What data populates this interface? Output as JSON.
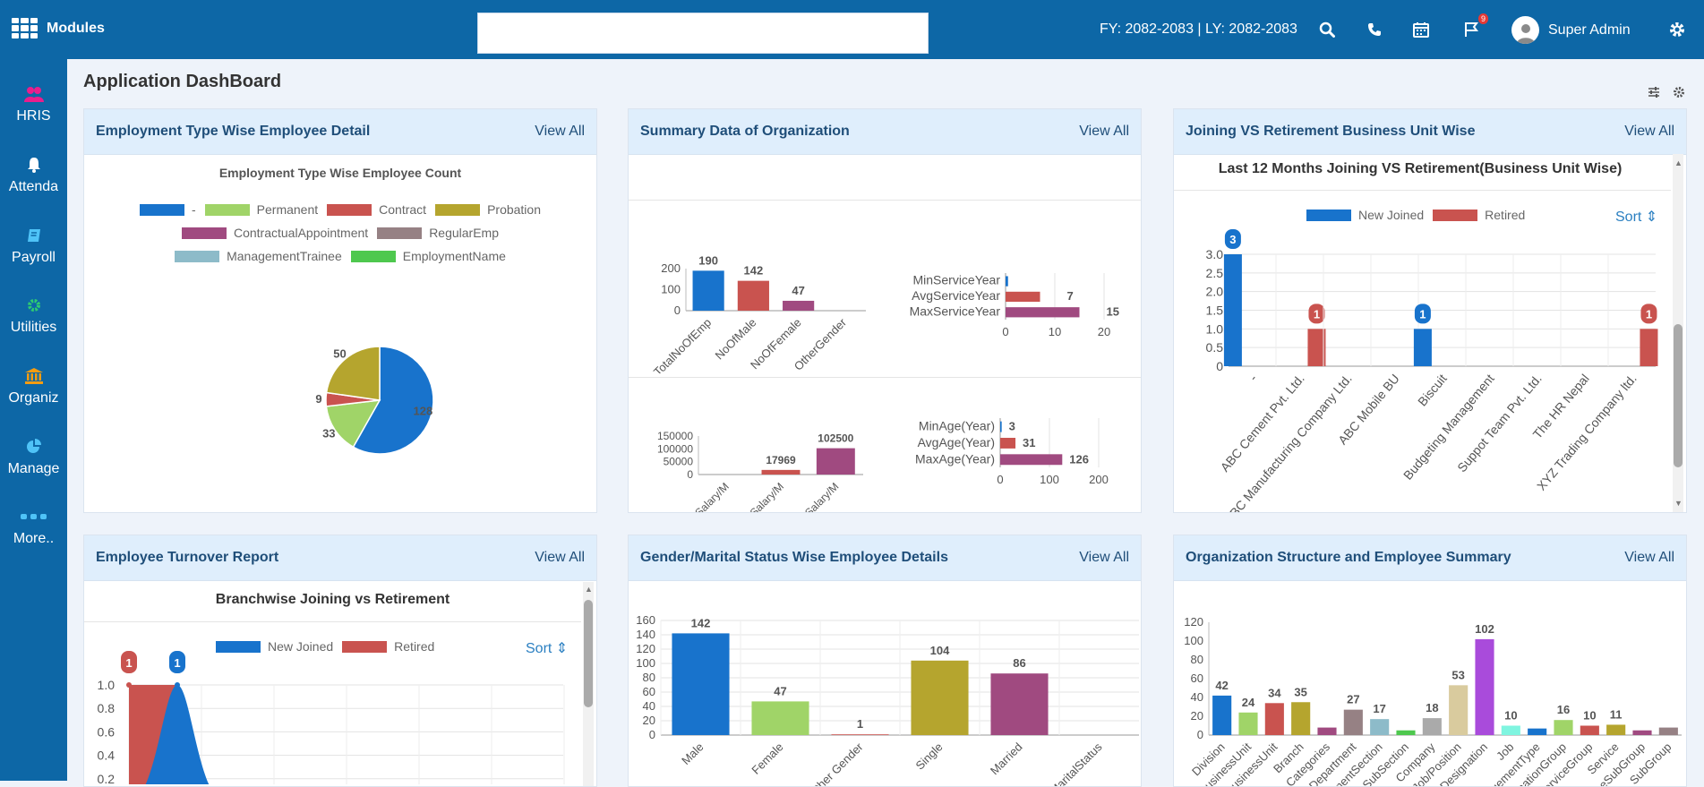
{
  "topbar": {
    "modules_label": "Modules",
    "search_value": "",
    "fiscal_year": "FY: 2082-2083 | LY: 2082-2083",
    "flag_badge": "9",
    "user_name": "Super Admin",
    "icons": [
      "grid-icon",
      "search-icon",
      "phone-icon",
      "calendar-icon",
      "flag-icon",
      "user-avatar-icon",
      "settings-gear-icon"
    ]
  },
  "sidebar": {
    "items": [
      {
        "label": "HRIS",
        "icon": "users-icon",
        "color": "#e91e8c"
      },
      {
        "label": "Attenda",
        "icon": "bell-icon",
        "color": "#ffffff"
      },
      {
        "label": "Payroll",
        "icon": "book-icon",
        "color": "#4fc3f7"
      },
      {
        "label": "Utilities",
        "icon": "gear-icon",
        "color": "#2ecc71"
      },
      {
        "label": "Organiz",
        "icon": "bank-icon",
        "color": "#f39c12"
      },
      {
        "label": "Manage",
        "icon": "pie-icon",
        "color": "#4fc3f7"
      },
      {
        "label": "More..",
        "icon": "dots-icon",
        "color": "#4fc3f7"
      }
    ]
  },
  "page": {
    "title": "Application DashBoard",
    "view_all": "View All"
  },
  "panels": {
    "employment": {
      "title": "Employment Type Wise Employee Detail"
    },
    "summary": {
      "title": "Summary Data of Organization"
    },
    "joining": {
      "title": "Joining VS Retirement Business Unit Wise"
    },
    "turnover": {
      "title": "Employee Turnover Report"
    },
    "gender": {
      "title": "Gender/Marital Status Wise Employee Details"
    },
    "orgstruct": {
      "title": "Organization Structure and Employee Summary"
    }
  },
  "colors": {
    "blue": "#1873cc",
    "red": "#c9534f",
    "olive": "#b5a52e",
    "purple": "#a04a80",
    "green": "#a0d468",
    "mauve": "#968184",
    "teal": "#8dbbc9",
    "brightgreen": "#4ec84e",
    "tan": "#d9cb9e",
    "violet": "#a94bdb",
    "cyan": "#7ff5e0"
  },
  "chart_data": [
    {
      "id": "employment-pie",
      "type": "pie",
      "title": "Employment Type Wise Employee Count",
      "legend": [
        {
          "name": "-",
          "color": "#1873cc"
        },
        {
          "name": "Permanent",
          "color": "#a0d468"
        },
        {
          "name": "Contract",
          "color": "#c9534f"
        },
        {
          "name": "Probation",
          "color": "#b5a52e"
        },
        {
          "name": "ContractualAppointment",
          "color": "#a04a80"
        },
        {
          "name": "RegularEmp",
          "color": "#968184"
        },
        {
          "name": "ManagementTrainee",
          "color": "#8dbbc9"
        },
        {
          "name": "EmploymentName",
          "color": "#4ec84e"
        }
      ],
      "slices": [
        {
          "name": "-",
          "value": 128,
          "color": "#1873cc"
        },
        {
          "name": "Permanent",
          "value": 33,
          "color": "#a0d468"
        },
        {
          "name": "Contract",
          "value": 9,
          "color": "#c9534f"
        },
        {
          "name": "Probation",
          "value": 50,
          "color": "#b5a52e"
        }
      ]
    },
    {
      "id": "summary-emp",
      "type": "bar",
      "categories": [
        "TotalNoOfEmp",
        "NoOfMale",
        "NoOfFemale",
        "OtherGender"
      ],
      "values": [
        190,
        142,
        47,
        0
      ],
      "colors": [
        "#1873cc",
        "#c9534f",
        "#a04a80",
        "#b5a52e"
      ],
      "yticks": [
        0,
        100,
        200
      ],
      "ylim": [
        0,
        200
      ]
    },
    {
      "id": "summary-service",
      "type": "bar",
      "orientation": "horizontal",
      "categories": [
        "MinServiceYear",
        "AvgServiceYear",
        "MaxServiceYear"
      ],
      "values": [
        0.5,
        7,
        15
      ],
      "value_labels": [
        "",
        "7",
        "15"
      ],
      "colors": [
        "#1873cc",
        "#c9534f",
        "#a04a80"
      ],
      "xticks": [
        0,
        10,
        20
      ],
      "xlim": [
        0,
        20
      ]
    },
    {
      "id": "summary-salary",
      "type": "bar",
      "categories": [
        "MinSalary/M",
        "AvgSalary/M",
        "MaxSalary/M"
      ],
      "values": [
        0,
        17969,
        102500
      ],
      "value_labels": [
        "",
        "17969",
        "102500"
      ],
      "colors": [
        "#1873cc",
        "#c9534f",
        "#a04a80"
      ],
      "yticks": [
        0,
        50000,
        100000,
        150000
      ],
      "ylim": [
        0,
        150000
      ]
    },
    {
      "id": "summary-age",
      "type": "bar",
      "orientation": "horizontal",
      "categories": [
        "MinAge(Year)",
        "AvgAge(Year)",
        "MaxAge(Year)"
      ],
      "values": [
        3,
        31,
        126
      ],
      "colors": [
        "#1873cc",
        "#c9534f",
        "#a04a80"
      ],
      "xticks": [
        0,
        100,
        200
      ],
      "xlim": [
        0,
        200
      ]
    },
    {
      "id": "joining-bu",
      "type": "bar",
      "title": "Last 12 Months Joining VS Retirement(Business Unit Wise)",
      "sort_label": "Sort",
      "categories": [
        "-",
        "ABC Cement Pvt. Ltd.",
        "ABC Manufacturing Company Ltd.",
        "ABC Mobile BU",
        "Biscuit",
        "Budgeting Management",
        "Suppot Team Pvt. Ltd.",
        "The HR Nepal",
        "XYZ Trading Company ltd."
      ],
      "series": [
        {
          "name": "New Joined",
          "color": "#1873cc",
          "values": [
            3,
            0,
            0,
            0,
            1,
            0,
            0,
            0,
            0
          ]
        },
        {
          "name": "Retired",
          "color": "#c9534f",
          "values": [
            0,
            1,
            0,
            0,
            0,
            0,
            0,
            0,
            1
          ]
        }
      ],
      "yticks": [
        "0",
        "0.5",
        "1.0",
        "1.5",
        "2.0",
        "2.5",
        "3.0"
      ],
      "ylim": [
        0,
        3
      ]
    },
    {
      "id": "turnover",
      "type": "area",
      "title": "Branchwise Joining vs Retirement",
      "sort_label": "Sort",
      "series": [
        {
          "name": "New Joined",
          "color": "#1873cc",
          "values": [
            0,
            1,
            0
          ]
        },
        {
          "name": "Retired",
          "color": "#c9534f",
          "values": [
            1,
            1,
            0
          ]
        }
      ],
      "yticks": [
        "0.2",
        "0.4",
        "0.6",
        "0.8",
        "1.0"
      ],
      "ylim": [
        0,
        1
      ]
    },
    {
      "id": "gender-marital",
      "type": "bar",
      "categories": [
        "Male",
        "Female",
        "Other Gender",
        "Single",
        "Married",
        "Other MaritalStatus"
      ],
      "values": [
        142,
        47,
        1,
        104,
        86,
        0
      ],
      "colors": [
        "#1873cc",
        "#a0d468",
        "#c9534f",
        "#b5a52e",
        "#a04a80",
        "#968184"
      ],
      "yticks": [
        0,
        20,
        40,
        60,
        80,
        100,
        120,
        140,
        160
      ],
      "ylim": [
        0,
        160
      ]
    },
    {
      "id": "org-structure",
      "type": "bar",
      "categories": [
        "Division",
        "BusinessUnit",
        "SubBusinessUnit",
        "Branch",
        "Categories",
        "Department",
        "DepartmentSection",
        "SubSection",
        "Company",
        "Job/Position",
        "Designation",
        "Job",
        "ManagementType",
        "DesignationGroup",
        "ServiceGroup",
        "Service",
        "ServiceSubGroup",
        "SubGroup"
      ],
      "values": [
        42,
        24,
        34,
        35,
        8,
        27,
        17,
        5,
        18,
        53,
        102,
        10,
        7,
        16,
        10,
        11,
        5,
        8
      ],
      "value_labels": [
        "42",
        "24",
        "34",
        "35",
        "",
        "27",
        "17",
        "",
        "18",
        "53",
        "102",
        "10",
        "",
        "16",
        "10",
        "11",
        "",
        ""
      ],
      "colors": [
        "#1873cc",
        "#a0d468",
        "#c9534f",
        "#b5a52e",
        "#a04a80",
        "#968184",
        "#8dbbc9",
        "#4ec84e",
        "#aaaaaa",
        "#d9cb9e",
        "#a94bdb",
        "#7ff5e0",
        "#1873cc",
        "#a0d468",
        "#c9534f",
        "#b5a52e",
        "#a04a80",
        "#968184"
      ],
      "yticks": [
        0,
        20,
        40,
        60,
        80,
        100,
        120
      ],
      "ylim": [
        0,
        120
      ]
    }
  ]
}
